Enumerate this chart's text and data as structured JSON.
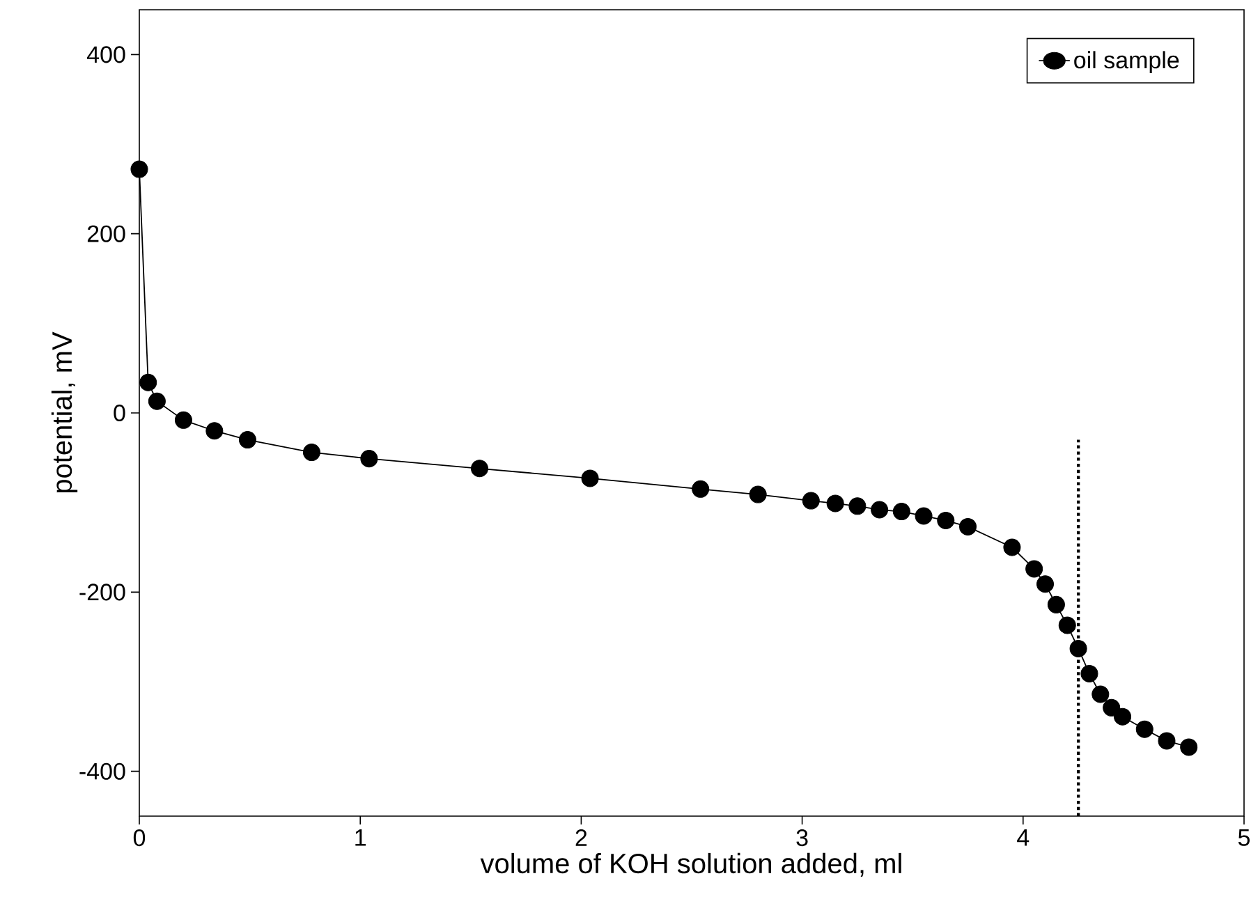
{
  "chart_data": {
    "type": "line",
    "xlabel": "volume of KOH solution added, ml",
    "ylabel": "potential, mV",
    "xlim": [
      0,
      5
    ],
    "ylim": [
      -450,
      450
    ],
    "xticks": [
      0,
      1,
      2,
      3,
      4,
      5
    ],
    "yticks": [
      -400,
      -200,
      0,
      200,
      400
    ],
    "grid": false,
    "legend": "top right",
    "marker": "circle",
    "line_style": "solid",
    "series": [
      {
        "name": "oil sample",
        "color": "#000000",
        "x": [
          0,
          0.04,
          0.08,
          0.2,
          0.34,
          0.49,
          0.78,
          1.04,
          1.54,
          2.04,
          2.54,
          2.8,
          3.04,
          3.15,
          3.25,
          3.35,
          3.45,
          3.55,
          3.65,
          3.75,
          3.95,
          4.05,
          4.1,
          4.15,
          4.2,
          4.25,
          4.3,
          4.35,
          4.4,
          4.45,
          4.55,
          4.65,
          4.75
        ],
        "values": [
          272,
          34,
          13,
          -8,
          -20,
          -30,
          -44,
          -51,
          -62,
          -73,
          -85,
          -91,
          -98,
          -101,
          -104,
          -108,
          -110,
          -115,
          -120,
          -127,
          -150,
          -174,
          -191,
          -214,
          -237,
          -263,
          -291,
          -314,
          -329,
          -339,
          -353,
          -366,
          -373
        ]
      },
      {
        "color": "#000000",
        "x": [
          4.25,
          4.25
        ],
        "values": [
          -450,
          -30
        ],
        "line_style": "dotted",
        "marker": "none"
      }
    ]
  }
}
